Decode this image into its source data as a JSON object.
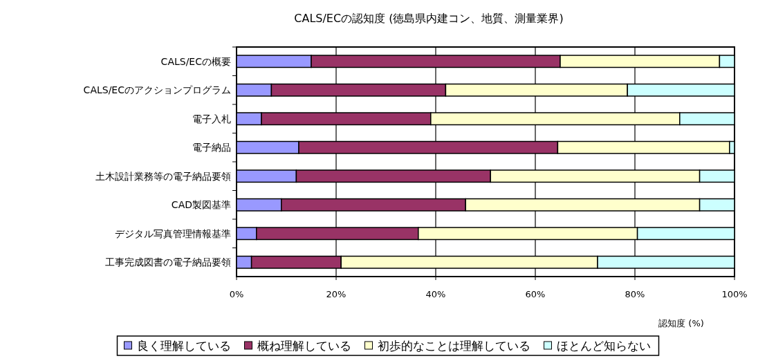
{
  "chart_data": {
    "type": "bar",
    "orientation": "horizontal",
    "stacked": true,
    "title": "CALS/ECの認知度 (徳島県内建コン、地質、測量業界)",
    "xlabel": "認知度 (%)",
    "categories": [
      "CALS/ECの概要",
      "CALS/ECのアクションプログラム",
      "電子入札",
      "電子納品",
      "土木設計業務等の電子納品要領",
      "CAD製図基準",
      "デジタル写真管理情報基準",
      "工事完成図書の電子納品要領"
    ],
    "series": [
      {
        "name": "良く理解している",
        "color": "#9999ff",
        "values": [
          15,
          7,
          5,
          12.5,
          12,
          9,
          4,
          3
        ]
      },
      {
        "name": "概ね理解している",
        "color": "#993366",
        "values": [
          50,
          35,
          34,
          52,
          39,
          37,
          32.5,
          18
        ]
      },
      {
        "name": "初歩的なことは理解している",
        "color": "#ffffcc",
        "values": [
          32,
          36.5,
          50,
          34.5,
          42,
          47,
          44,
          51.5
        ]
      },
      {
        "name": "ほとんど知らない",
        "color": "#ccffff",
        "values": [
          3,
          21.5,
          11,
          1,
          7,
          7,
          19.5,
          27.5
        ]
      }
    ],
    "xlim": [
      0,
      100
    ],
    "xticks": [
      {
        "value": 0,
        "label": "0%"
      },
      {
        "value": 20,
        "label": "20%"
      },
      {
        "value": 40,
        "label": "40%"
      },
      {
        "value": 60,
        "label": "60%"
      },
      {
        "value": 80,
        "label": "80%"
      },
      {
        "value": 100,
        "label": "100%"
      }
    ],
    "grid": "x",
    "legend": "bottom"
  }
}
